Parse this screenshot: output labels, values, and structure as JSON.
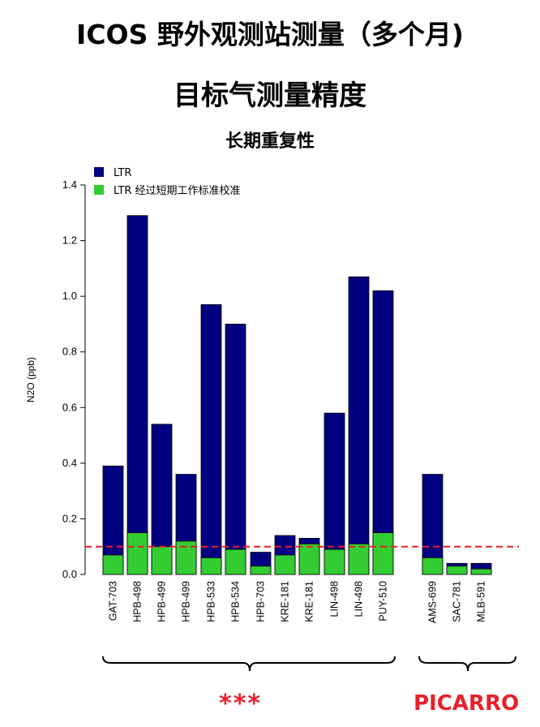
{
  "header": {
    "title": "ICOS 野外观测站测量（多个月)",
    "subtitle": "目标气测量精度",
    "chart_title": "长期重复性"
  },
  "chart_data": {
    "type": "bar",
    "title": "长期重复性",
    "ylabel": "N2O (ppb)",
    "xlabel": "",
    "ylim": [
      0,
      1.4
    ],
    "yticks": [
      "0.0",
      "0.2",
      "0.4",
      "0.6",
      "0.8",
      "1.0",
      "1.2",
      "1.4"
    ],
    "categories": [
      "GAT-703",
      "HPB-498",
      "HPB-499",
      "HPB-499",
      "HPB-533",
      "HPB-534",
      "HPB-703",
      "KRE-181",
      "KRE-181",
      "LIN-498",
      "LIN-498",
      "PUY-510",
      "AMS-699",
      "SAC-781",
      "MLB-591"
    ],
    "series": [
      {
        "name": "LTR",
        "color": "#000080",
        "values": [
          0.39,
          1.29,
          0.54,
          0.36,
          0.97,
          0.9,
          0.08,
          0.14,
          0.13,
          0.58,
          1.07,
          1.02,
          0.36,
          0.04,
          0.04
        ]
      },
      {
        "name": "LTR  经过短期工作标准校准",
        "color": "#33cc33",
        "values": [
          0.07,
          0.15,
          0.1,
          0.12,
          0.06,
          0.09,
          0.03,
          0.07,
          0.11,
          0.09,
          0.11,
          0.15,
          0.06,
          0.03,
          0.02
        ]
      }
    ],
    "reference_line": {
      "value": 0.1,
      "color": "#ee1c24",
      "style": "dashed"
    },
    "legend_position": "top-left",
    "groups": [
      {
        "label": "***",
        "color": "#e8202a"
      },
      {
        "label": "PICARRO",
        "color": "#e8202a"
      }
    ]
  }
}
